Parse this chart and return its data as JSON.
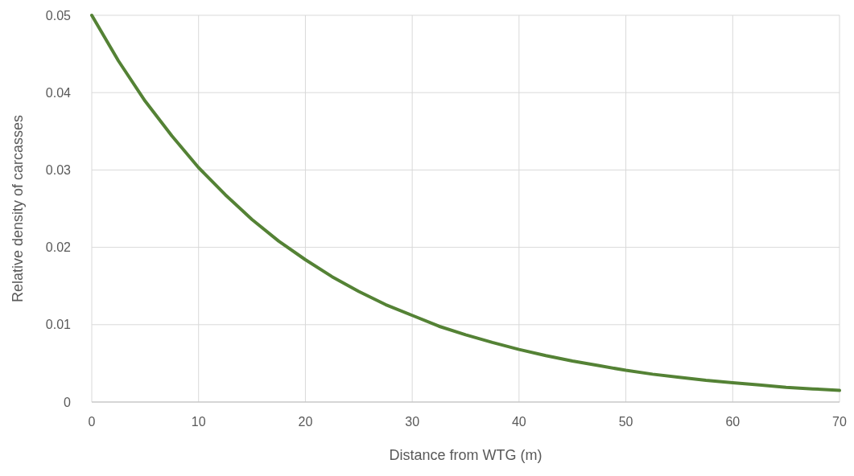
{
  "chart_data": {
    "type": "line",
    "xlabel": "Distance from WTG (m)",
    "ylabel": "Relative density of carcasses",
    "x": [
      0,
      2.5,
      5,
      7.5,
      10,
      12.5,
      15,
      17.5,
      20,
      22.5,
      25,
      27.5,
      30,
      32.5,
      35,
      37.5,
      40,
      42.5,
      45,
      47.5,
      50,
      52.5,
      55,
      57.5,
      60,
      62.5,
      65,
      67.5,
      70
    ],
    "series": [
      {
        "color": "#548235",
        "values": [
          0.05,
          0.0441,
          0.0389,
          0.0344,
          0.0303,
          0.0268,
          0.0236,
          0.0208,
          0.0184,
          0.0162,
          0.0143,
          0.0126,
          0.0112,
          0.0098,
          0.0087,
          0.0077,
          0.0068,
          0.006,
          0.0053,
          0.0047,
          0.0041,
          0.0036,
          0.0032,
          0.0028,
          0.0025,
          0.0022,
          0.0019,
          0.0017,
          0.0015
        ]
      }
    ],
    "xlim": [
      0,
      70
    ],
    "xticks": [
      0,
      10,
      20,
      30,
      40,
      50,
      60,
      70
    ],
    "ylim": [
      0,
      0.05
    ],
    "yticks": [
      {
        "value": 0,
        "label": "0"
      },
      0.01,
      0.02,
      0.03,
      0.04,
      0.05
    ],
    "grid": true,
    "marker": "none",
    "line_style": "solid"
  }
}
